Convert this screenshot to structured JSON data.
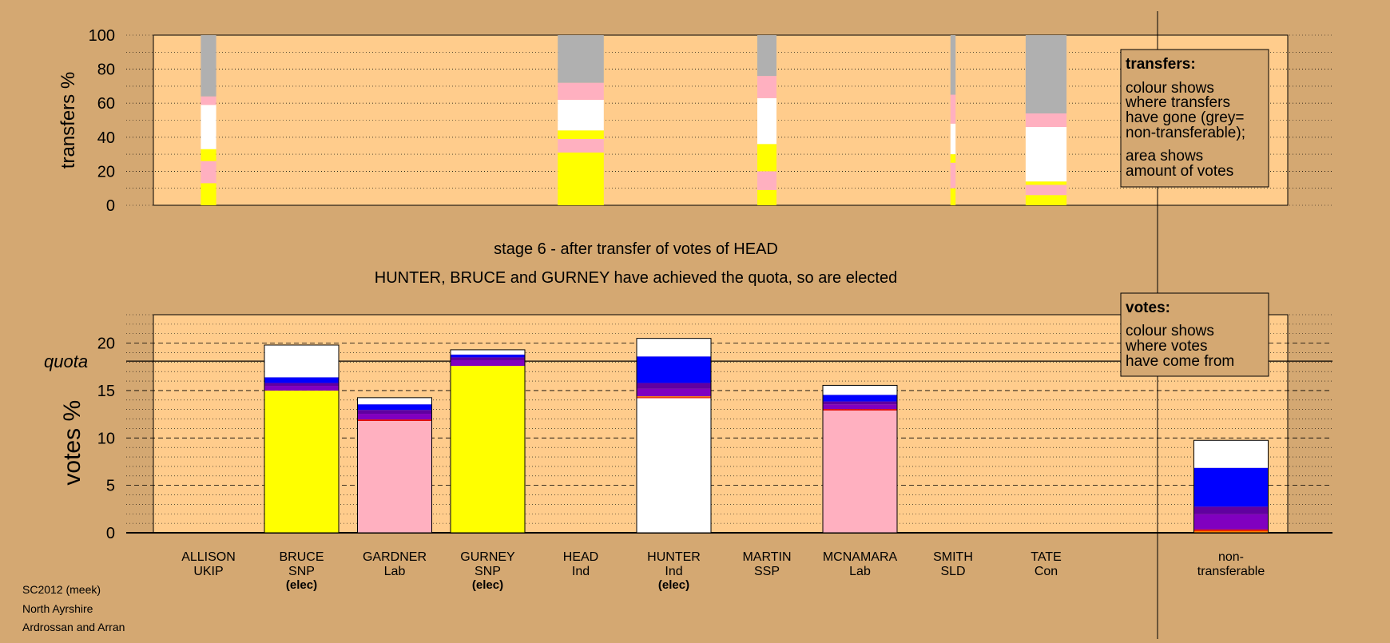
{
  "colors": {
    "background": "#D4A872",
    "plot_bg": "#FFCC8C",
    "yellow": "#FFFF00",
    "pink": "#FFB0C0",
    "white": "#FFFFFF",
    "grey": "#B0B0B0",
    "blue": "#0000FF",
    "purple": "#8000C0",
    "dark_purple": "#6000A0",
    "red": "#E00000",
    "orange": "#FF8000"
  },
  "header": {
    "stage_text": "stage 6 - after transfer of votes of HEAD",
    "elected_text": "HUNTER, BRUCE and GURNEY have achieved the quota, so are elected"
  },
  "footer": {
    "line1": "SC2012 (meek)",
    "line2": "North Ayrshire",
    "line3": "Ardrossan and Arran"
  },
  "transfers_legend": {
    "title": "transfers:",
    "line1": "colour shows",
    "line2": "where transfers",
    "line3": "have gone (grey=",
    "line4": "non-transferable);",
    "line5": "area shows",
    "line6": "amount of votes"
  },
  "votes_legend": {
    "title": "votes:",
    "line1": "colour shows",
    "line2": "where votes",
    "line3": "have come from"
  },
  "chart_data": [
    {
      "type": "bar",
      "title": "",
      "ylabel": "transfers %",
      "ylim": [
        0,
        100
      ],
      "yticks": [
        0,
        20,
        40,
        60,
        80,
        100
      ],
      "grid": true,
      "columns": [
        {
          "index": 0,
          "width_share": 0.12,
          "segments": [
            {
              "color": "yellow",
              "from": 0,
              "to": 13
            },
            {
              "color": "pink",
              "from": 13,
              "to": 26
            },
            {
              "color": "yellow",
              "from": 26,
              "to": 33
            },
            {
              "color": "white",
              "from": 33,
              "to": 59
            },
            {
              "color": "pink",
              "from": 59,
              "to": 64
            },
            {
              "color": "grey",
              "from": 64,
              "to": 100
            }
          ]
        },
        {
          "index": 4,
          "width_share": 0.36,
          "segments": [
            {
              "color": "yellow",
              "from": 0,
              "to": 31
            },
            {
              "color": "pink",
              "from": 31,
              "to": 39
            },
            {
              "color": "yellow",
              "from": 39,
              "to": 44
            },
            {
              "color": "white",
              "from": 44,
              "to": 62
            },
            {
              "color": "pink",
              "from": 62,
              "to": 72
            },
            {
              "color": "grey",
              "from": 72,
              "to": 100
            }
          ]
        },
        {
          "index": 6,
          "width_share": 0.15,
          "segments": [
            {
              "color": "yellow",
              "from": 0,
              "to": 9
            },
            {
              "color": "pink",
              "from": 9,
              "to": 20
            },
            {
              "color": "yellow",
              "from": 20,
              "to": 36
            },
            {
              "color": "white",
              "from": 36,
              "to": 63
            },
            {
              "color": "pink",
              "from": 63,
              "to": 76
            },
            {
              "color": "grey",
              "from": 76,
              "to": 100
            }
          ]
        },
        {
          "index": 8,
          "width_share": 0.04,
          "segments": [
            {
              "color": "yellow",
              "from": 0,
              "to": 10
            },
            {
              "color": "pink",
              "from": 10,
              "to": 25
            },
            {
              "color": "yellow",
              "from": 25,
              "to": 30
            },
            {
              "color": "white",
              "from": 30,
              "to": 48
            },
            {
              "color": "pink",
              "from": 48,
              "to": 65
            },
            {
              "color": "grey",
              "from": 65,
              "to": 100
            }
          ]
        },
        {
          "index": 9,
          "width_share": 0.32,
          "segments": [
            {
              "color": "yellow",
              "from": 0,
              "to": 6
            },
            {
              "color": "pink",
              "from": 6,
              "to": 12
            },
            {
              "color": "yellow",
              "from": 12,
              "to": 14
            },
            {
              "color": "white",
              "from": 14,
              "to": 46
            },
            {
              "color": "pink",
              "from": 46,
              "to": 54
            },
            {
              "color": "grey",
              "from": 54,
              "to": 100
            }
          ]
        }
      ]
    },
    {
      "type": "bar",
      "title": "",
      "ylabel": "votes %",
      "ylim": [
        0,
        23
      ],
      "yticks": [
        0,
        5,
        10,
        15,
        20
      ],
      "quota": 18.1,
      "quota_label": "quota",
      "grid": true,
      "categories": [
        {
          "name": "ALLISON",
          "party": "UKIP",
          "note": ""
        },
        {
          "name": "BRUCE",
          "party": "SNP",
          "note": "(elec)"
        },
        {
          "name": "GARDNER",
          "party": "Lab",
          "note": ""
        },
        {
          "name": "GURNEY",
          "party": "SNP",
          "note": "(elec)"
        },
        {
          "name": "HEAD",
          "party": "Ind",
          "note": ""
        },
        {
          "name": "HUNTER",
          "party": "Ind",
          "note": "(elec)"
        },
        {
          "name": "MARTIN",
          "party": "SSP",
          "note": ""
        },
        {
          "name": "MCNAMARA",
          "party": "Lab",
          "note": ""
        },
        {
          "name": "SMITH",
          "party": "SLD",
          "note": ""
        },
        {
          "name": "TATE",
          "party": "Con",
          "note": ""
        },
        {
          "name": "non-",
          "party": "transferable",
          "note": ""
        }
      ],
      "stacks": [
        [],
        [
          {
            "color": "yellow",
            "value": 15.0
          },
          {
            "color": "purple",
            "value": 0.5
          },
          {
            "color": "dark_purple",
            "value": 0.3
          },
          {
            "color": "blue",
            "value": 0.6
          },
          {
            "color": "white",
            "value": 3.4
          }
        ],
        [
          {
            "color": "pink",
            "value": 11.8
          },
          {
            "color": "red",
            "value": 0.15
          },
          {
            "color": "purple",
            "value": 0.6
          },
          {
            "color": "dark_purple",
            "value": 0.4
          },
          {
            "color": "blue",
            "value": 0.6
          },
          {
            "color": "white",
            "value": 0.7
          }
        ],
        [
          {
            "color": "yellow",
            "value": 17.6
          },
          {
            "color": "purple",
            "value": 0.6
          },
          {
            "color": "dark_purple",
            "value": 0.3
          },
          {
            "color": "blue",
            "value": 0.3
          },
          {
            "color": "white",
            "value": 0.5
          }
        ],
        [],
        [
          {
            "color": "white",
            "value": 14.2
          },
          {
            "color": "red",
            "value": 0.1
          },
          {
            "color": "orange",
            "value": 0.1
          },
          {
            "color": "purple",
            "value": 0.8
          },
          {
            "color": "dark_purple",
            "value": 0.6
          },
          {
            "color": "blue",
            "value": 2.8
          },
          {
            "color": "white",
            "value": 1.9
          }
        ],
        [],
        [
          {
            "color": "pink",
            "value": 12.9
          },
          {
            "color": "red",
            "value": 0.15
          },
          {
            "color": "purple",
            "value": 0.5
          },
          {
            "color": "dark_purple",
            "value": 0.3
          },
          {
            "color": "blue",
            "value": 0.7
          },
          {
            "color": "white",
            "value": 1.0
          }
        ],
        [],
        [],
        [
          {
            "color": "orange",
            "value": 0.2
          },
          {
            "color": "red",
            "value": 0.15
          },
          {
            "color": "purple",
            "value": 1.6
          },
          {
            "color": "dark_purple",
            "value": 0.8
          },
          {
            "color": "blue",
            "value": 4.1
          },
          {
            "color": "white",
            "value": 2.9
          }
        ]
      ]
    }
  ]
}
